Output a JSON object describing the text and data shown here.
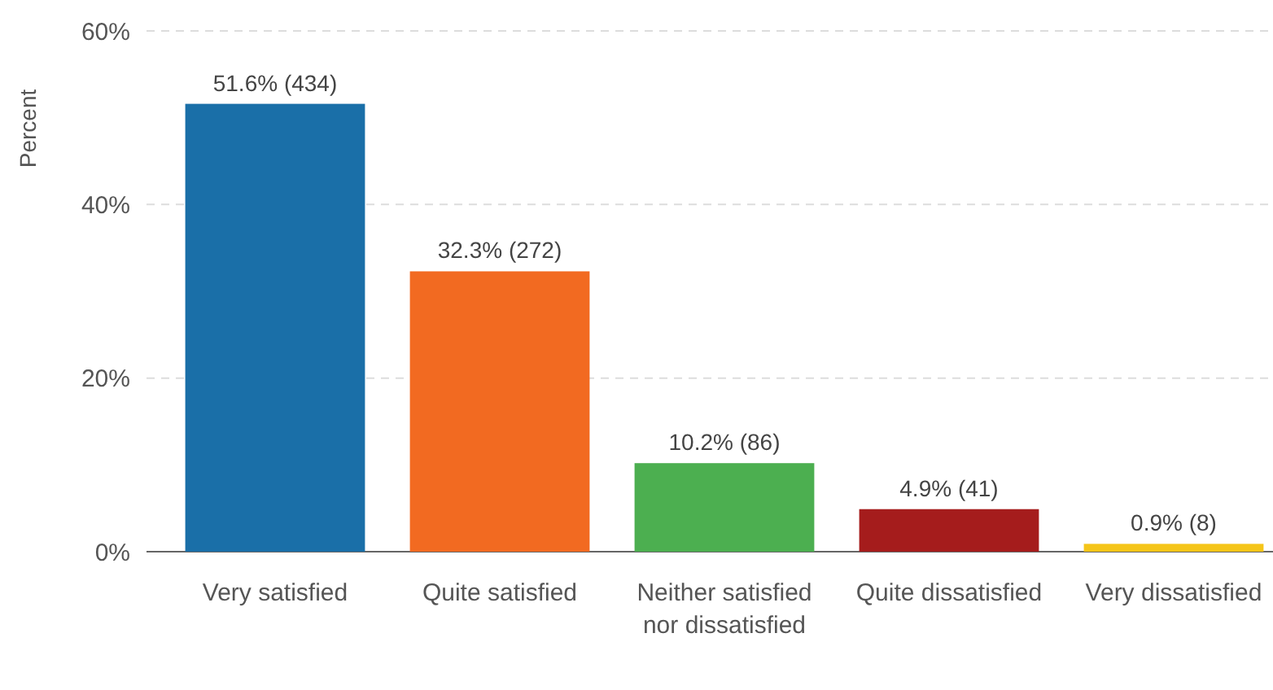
{
  "chart_data": {
    "type": "bar",
    "ylabel": "Percent",
    "categories": [
      "Very satisfied",
      "Quite satisfied",
      "Neither satisfied nor dissatisfied",
      "Quite dissatisfied",
      "Very dissatisfied"
    ],
    "values": [
      51.6,
      32.3,
      10.2,
      4.9,
      0.9
    ],
    "colors": [
      "#1a6fa8",
      "#f26a21",
      "#4caf50",
      "#a51c1c",
      "#f5c518"
    ],
    "value_labels": [
      "51.6% (434)",
      "32.3% (272)",
      "10.2% (86)",
      "4.9% (41)",
      "0.9% (8)"
    ],
    "ylim": [
      0,
      60
    ],
    "yticks": [
      {
        "value": 0,
        "label": "0%"
      },
      {
        "value": 20,
        "label": "20%"
      },
      {
        "value": 40,
        "label": "40%"
      },
      {
        "value": 60,
        "label": "60%"
      }
    ],
    "grid": "y"
  }
}
